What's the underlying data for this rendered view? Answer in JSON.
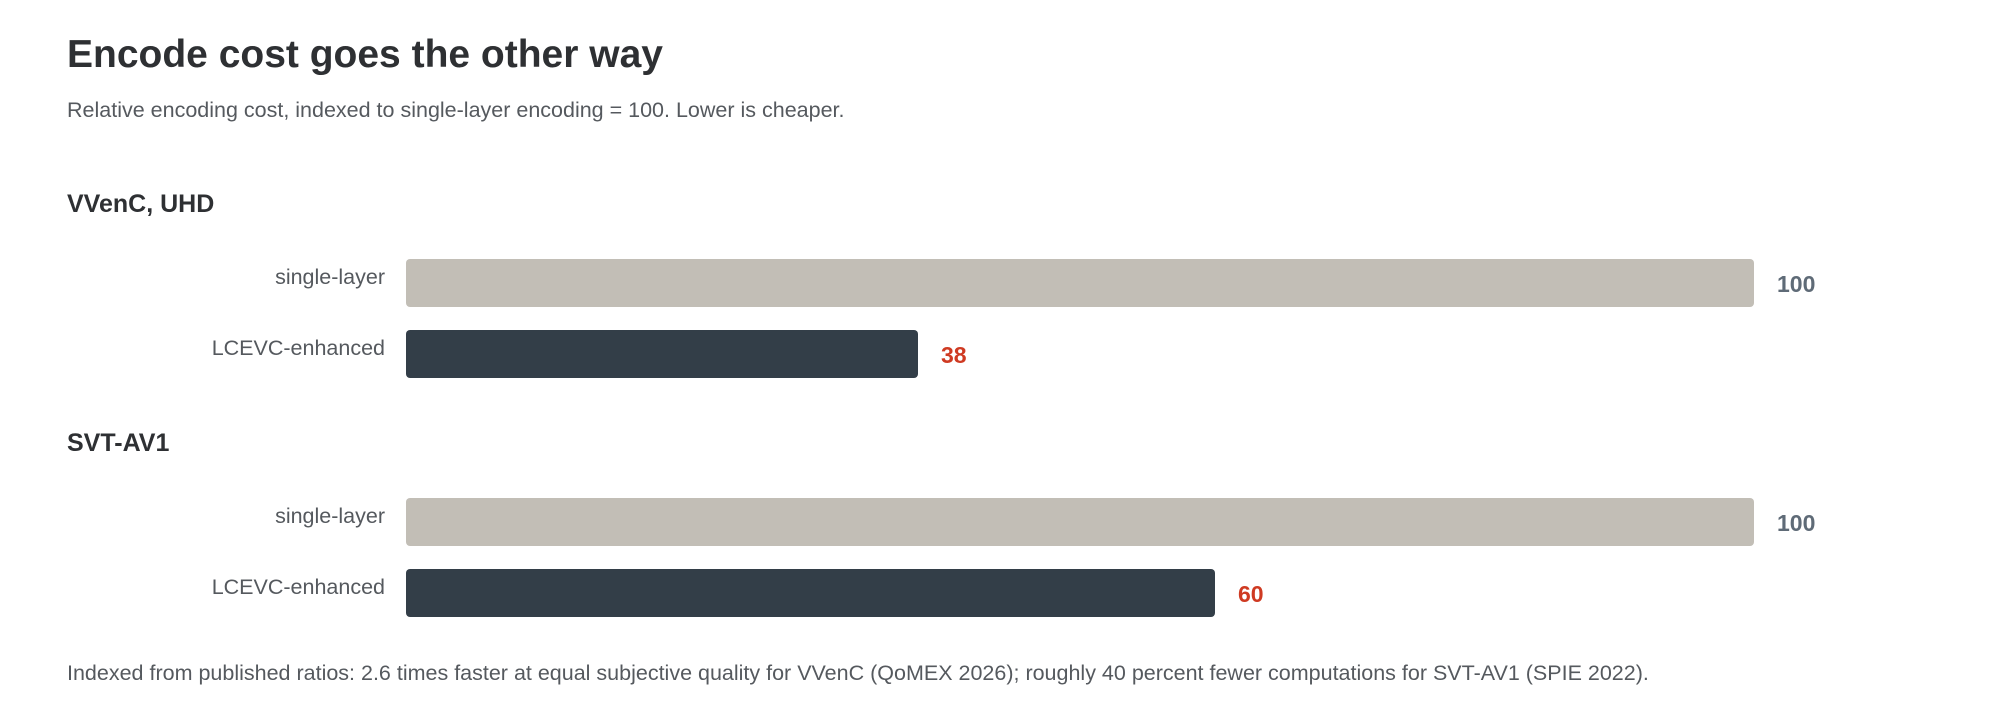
{
  "title": "Encode cost goes the other way",
  "subtitle": "Relative encoding cost, indexed to single-layer encoding = 100. Lower is cheaper.",
  "footnote": "Indexed from published ratios: 2.6 times faster at equal subjective quality for VVenC (QoMEX 2026); roughly 40 percent fewer computations for SVT-AV1 (SPIE 2022).",
  "colors": {
    "single_layer_bar": "#c2beb6",
    "lcevc_bar": "#333e48",
    "single_layer_value": "#5f6b77",
    "lcevc_value": "#cf3a22"
  },
  "chart_data": [
    {
      "type": "bar",
      "orientation": "horizontal",
      "title": "VVenC, UHD",
      "categories": [
        "single-layer",
        "LCEVC-enhanced"
      ],
      "values": [
        100,
        38
      ],
      "xlim": [
        0,
        100
      ],
      "grid": false
    },
    {
      "type": "bar",
      "orientation": "horizontal",
      "title": "SVT-AV1",
      "categories": [
        "single-layer",
        "LCEVC-enhanced"
      ],
      "values": [
        100,
        60
      ],
      "xlim": [
        0,
        100
      ],
      "grid": false
    }
  ]
}
